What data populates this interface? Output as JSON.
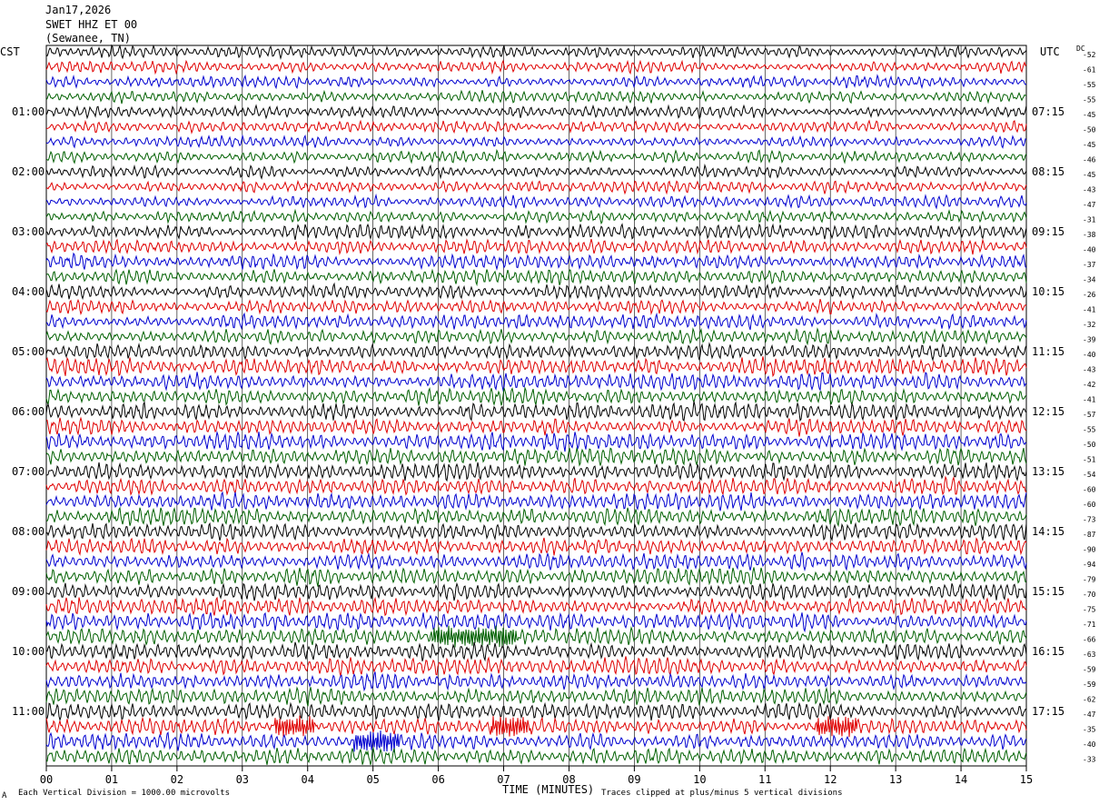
{
  "header": {
    "date": "Jan17,2026",
    "station": "SWET HHZ ET 00",
    "location": "(Sewanee, TN)"
  },
  "left_axis_label": "CST",
  "right_axis_label": "UTC",
  "dc_label": "DC",
  "footer": {
    "vertical_division": "Each Vertical Division = 1000.00 microvolts",
    "clip_note": "Traces clipped at plus/minus 5 vertical divisions",
    "corner_mark": "A"
  },
  "chart_data": {
    "type": "line",
    "xlabel": "TIME (MINUTES)",
    "xlim": [
      0,
      15
    ],
    "x_ticks": [
      "00",
      "01",
      "02",
      "03",
      "04",
      "05",
      "06",
      "07",
      "08",
      "09",
      "10",
      "11",
      "12",
      "13",
      "14",
      "15"
    ],
    "minutes_per_line": 15,
    "num_lines": 48,
    "trace_colors": [
      "#000000",
      "#e00000",
      "#0000d0",
      "#006000"
    ],
    "cst_hour_labels": [
      "01:00",
      "02:00",
      "03:00",
      "04:00",
      "05:00",
      "06:00",
      "07:00",
      "08:00",
      "09:00",
      "10:00",
      "11:00"
    ],
    "utc_hour_labels": [
      "07:15",
      "08:15",
      "09:15",
      "10:15",
      "11:15",
      "12:15",
      "13:15",
      "14:15",
      "15:15",
      "16:15",
      "17:15"
    ],
    "dc_offsets": [
      -52,
      -61,
      -55,
      -55,
      -45,
      -50,
      -45,
      -46,
      -45,
      -43,
      -47,
      -31,
      -38,
      -40,
      -37,
      -34,
      -26,
      -41,
      -32,
      -39,
      -40,
      -43,
      -42,
      -41,
      -57,
      -55,
      -50,
      -51,
      -54,
      -60,
      -60,
      -73,
      -87,
      -90,
      -94,
      -79,
      -70,
      -75,
      -71,
      -66,
      -63,
      -59,
      -59,
      -62,
      -47,
      -35,
      -40,
      -33
    ],
    "amplitude_class": [
      2,
      2,
      2,
      2,
      2,
      2,
      2,
      2,
      2,
      2,
      2,
      2,
      3,
      3,
      3,
      3,
      3,
      3,
      3,
      3,
      3,
      4,
      4,
      4,
      4,
      4,
      4,
      4,
      4,
      4,
      4,
      4,
      4,
      4,
      4,
      4,
      4,
      4,
      4,
      4,
      4,
      4,
      4,
      4,
      4,
      4,
      4,
      4
    ],
    "bursts": [
      {
        "line": 39,
        "minute_start": 5.9,
        "minute_end": 7.2
      },
      {
        "line": 45,
        "minute_start": 3.5,
        "minute_end": 4.1
      },
      {
        "line": 45,
        "minute_start": 6.8,
        "minute_end": 7.4
      },
      {
        "line": 45,
        "minute_start": 11.8,
        "minute_end": 12.4
      },
      {
        "line": 46,
        "minute_start": 4.7,
        "minute_end": 5.4
      }
    ]
  }
}
